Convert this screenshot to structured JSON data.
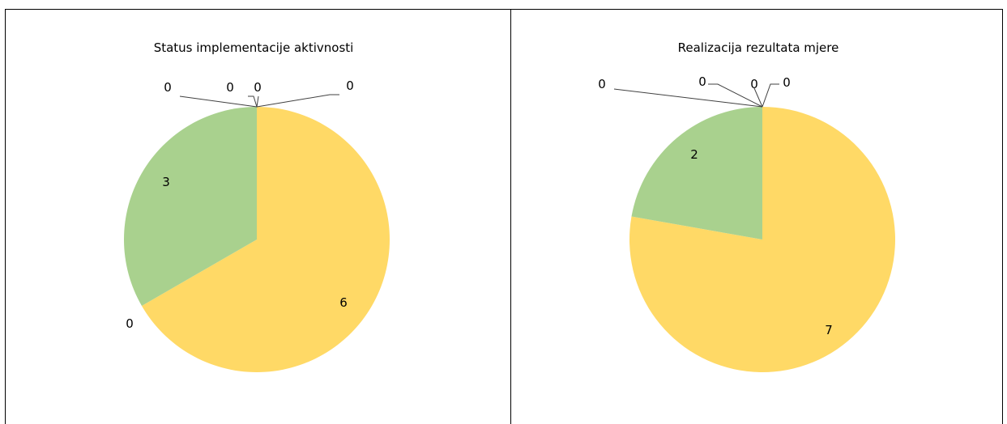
{
  "chart_data": [
    {
      "type": "pie",
      "title": "Status implementacije aktivnosti",
      "series": [
        {
          "values": [
            0,
            0,
            0,
            0,
            6,
            0,
            3
          ],
          "data_labels": [
            "0",
            "0",
            "0",
            "0",
            "6",
            "0",
            "3"
          ],
          "colors": [
            "#a6a6a6",
            "#ed7d31",
            "#ffc000",
            "#5b9bd5",
            "#ffd966",
            "#70ad47",
            "#a9d18e"
          ]
        }
      ],
      "legend": "none"
    },
    {
      "type": "pie",
      "title": "Realizacija rezultata mjere",
      "series": [
        {
          "values": [
            0,
            0,
            0,
            0,
            7,
            2
          ],
          "data_labels": [
            "0",
            "0",
            "0",
            "0",
            "7",
            "2"
          ],
          "colors": [
            "#a6a6a6",
            "#ed7d31",
            "#ffc000",
            "#5b9bd5",
            "#ffd966",
            "#a9d18e"
          ]
        }
      ],
      "legend": "none"
    }
  ]
}
